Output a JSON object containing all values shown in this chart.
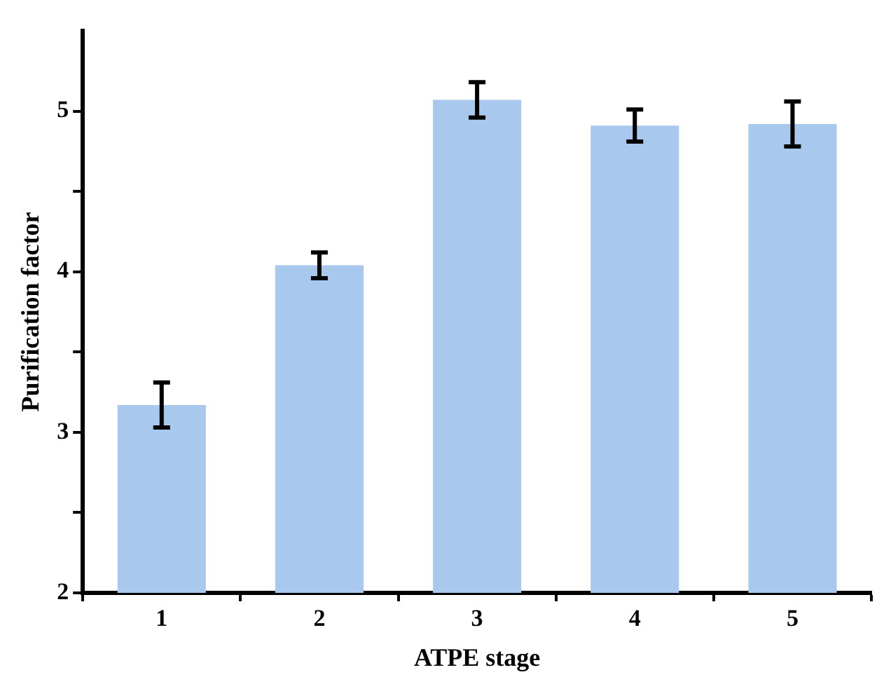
{
  "chart_data": {
    "type": "bar",
    "xlabel": "ATPE stage",
    "ylabel": "Purification factor",
    "categories": [
      "1",
      "2",
      "3",
      "4",
      "5"
    ],
    "values": [
      3.17,
      4.04,
      5.07,
      4.91,
      4.92
    ],
    "errors": [
      0.14,
      0.08,
      0.11,
      0.1,
      0.14
    ],
    "color": "#a8c8ee",
    "ylim": [
      2,
      5.5
    ],
    "yticks": [
      2,
      {
        "value": 2.5,
        "label": null
      },
      3,
      {
        "value": 3.5,
        "label": null
      },
      4,
      {
        "value": 4.5,
        "label": null
      },
      5
    ],
    "grid": false,
    "legend": false
  }
}
